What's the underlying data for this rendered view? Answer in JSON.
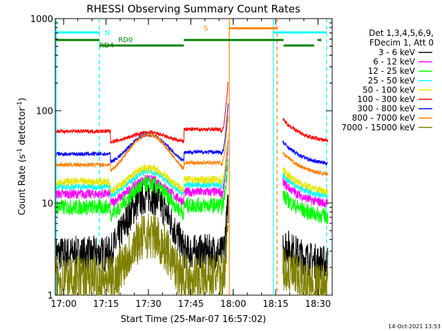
{
  "chart_data": {
    "type": "line",
    "title": "RHESSI Observing Summary Count Rates",
    "xlabel": "Start Time (25-Mar-07 16:57:02)",
    "ylabel_main": "Count Rate (s",
    "ylabel_sup1": "-1",
    "ylabel_mid": " detector",
    "ylabel_sup2": "-1",
    "ylabel_end": ")",
    "x_unit": "minutes after 16:57:02",
    "xlim": [
      0,
      98
    ],
    "ylim": [
      1,
      1000
    ],
    "yscale": "log",
    "grid": false,
    "xticks": [
      {
        "t": 2.97,
        "label": "17:00"
      },
      {
        "t": 17.97,
        "label": "17:15"
      },
      {
        "t": 32.97,
        "label": "17:30"
      },
      {
        "t": 47.97,
        "label": "17:45"
      },
      {
        "t": 62.97,
        "label": "18:00"
      },
      {
        "t": 77.97,
        "label": "18:15"
      },
      {
        "t": 92.97,
        "label": "18:30"
      }
    ],
    "yticks": [
      {
        "v": 1,
        "label": "1"
      },
      {
        "v": 10,
        "label": "10"
      },
      {
        "v": 100,
        "label": "100"
      },
      {
        "v": 1000,
        "label": "1000"
      }
    ],
    "legend_position": "top-right",
    "legend_header": [
      "Det 1,3,4,5,6,9,",
      "FDecim 1, Att 0"
    ],
    "timestamp": "14-Oct-2021 13:53",
    "series": [
      {
        "name": "3 - 6 keV",
        "color": "#000000",
        "base": 2.8,
        "peak": 12,
        "noise": 0.45
      },
      {
        "name": "6 - 12 keV",
        "color": "#ff00ff",
        "base": 12.5,
        "peak": 18,
        "noise": 0.12
      },
      {
        "name": "12 - 25 keV",
        "color": "#00ff00",
        "base": 9,
        "peak": 16,
        "noise": 0.2
      },
      {
        "name": "25 - 50 keV",
        "color": "#00ffff",
        "base": 15,
        "peak": 22,
        "noise": 0.08
      },
      {
        "name": "50 - 100 keV",
        "color": "#e6e600",
        "base": 17,
        "peak": 24,
        "noise": 0.1
      },
      {
        "name": "100 - 300 keV",
        "color": "#ff0000",
        "base": 60,
        "peak": 58,
        "noise": 0.05
      },
      {
        "name": "300 - 800 keV",
        "color": "#0000ff",
        "base": 34,
        "peak": 55,
        "noise": 0.05
      },
      {
        "name": "800 - 7000 keV",
        "color": "#ff8000",
        "base": 26,
        "peak": 55,
        "noise": 0.05
      },
      {
        "name": "7000 - 15000 keV",
        "color": "#808000",
        "base": 1.5,
        "peak": 4.5,
        "noise": 0.6
      }
    ],
    "annotations": {
      "N": {
        "label": "N",
        "color": "#00ffff"
      },
      "S": {
        "label": "S",
        "color": "#ff8000"
      },
      "RD0": {
        "label": "RD0",
        "color": "#008000"
      },
      "RD4": {
        "label": "RD4",
        "color": "#008000"
      }
    },
    "night_intervals": [
      [
        0,
        15.6
      ],
      [
        77.2,
        96
      ]
    ],
    "saa_interval": [
      61.6,
      78.5
    ],
    "data_gaps": [
      [
        60.8,
        80.5
      ]
    ],
    "vertical_markers": [
      {
        "t": 0.3,
        "color": "#00ffff",
        "dash": false
      },
      {
        "t": 15.6,
        "color": "#00ffff",
        "dash": true
      },
      {
        "t": 61.6,
        "color": "#ff8000",
        "dash": false
      },
      {
        "t": 77.2,
        "color": "#00ffff",
        "dash": false
      },
      {
        "t": 78.5,
        "color": "#ff8000",
        "dash": true
      },
      {
        "t": 96.0,
        "color": "#00ffff",
        "dash": true
      }
    ],
    "decimation_segments": [
      {
        "t0": 0,
        "t1": 15.6,
        "level": "high"
      },
      {
        "t0": 15.6,
        "t1": 21.2,
        "level": "low"
      },
      {
        "t0": 21.2,
        "t1": 45.5,
        "level": "low"
      },
      {
        "t0": 45.5,
        "t1": 80.8,
        "level": "high"
      },
      {
        "t0": 80.8,
        "t1": 91.6,
        "level": "low"
      },
      {
        "t0": 92.8,
        "t1": 94.2,
        "level": "high"
      }
    ],
    "attenuator_segments": [
      [
        0,
        15.6
      ],
      [
        21.2,
        45.5
      ],
      [
        45.5,
        80.8
      ],
      [
        80.8,
        91.6
      ]
    ]
  }
}
